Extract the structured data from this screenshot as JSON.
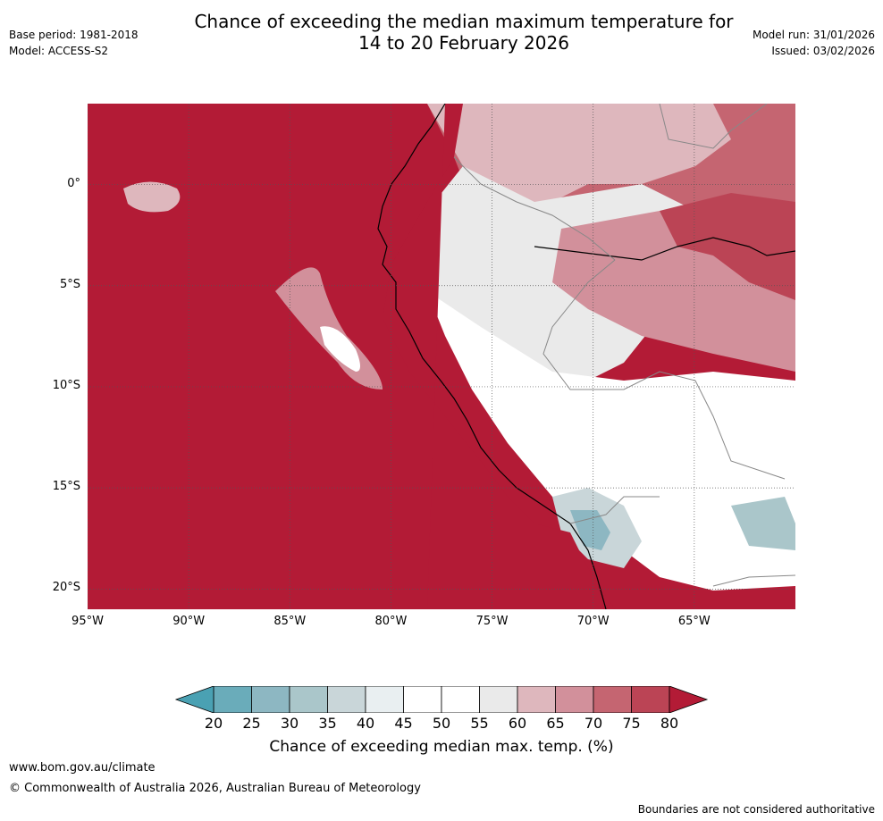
{
  "title": {
    "line1": "Chance of exceeding the median maximum temperature for",
    "line2": "14 to 20 February 2026"
  },
  "meta_left": {
    "base_period": "Base period: 1981-2018",
    "model": "Model: ACCESS-S2"
  },
  "meta_right": {
    "model_run": "Model run: 31/01/2026",
    "issued": "Issued: 03/02/2026"
  },
  "map": {
    "lat_labels": [
      "0°",
      "5°S",
      "10°S",
      "15°S",
      "20°S"
    ],
    "lon_labels": [
      "95°W",
      "90°W",
      "85°W",
      "80°W",
      "75°W",
      "70°W",
      "65°W"
    ],
    "lat_values": [
      0,
      -5,
      -10,
      -15,
      -20
    ],
    "lon_values": [
      -95,
      -90,
      -85,
      -80,
      -75,
      -70,
      -65
    ],
    "lon_range": [
      -95,
      -60
    ],
    "lat_range": [
      -21,
      4
    ]
  },
  "colorbar": {
    "label": "Chance of exceeding median max. temp. (%)",
    "ticks": [
      "20",
      "25",
      "30",
      "35",
      "40",
      "45",
      "50",
      "55",
      "60",
      "65",
      "70",
      "75",
      "80"
    ],
    "colors": [
      "#6aacba",
      "#8db7c2",
      "#aac6ca",
      "#c9d6d9",
      "#e9eff1",
      "#ffffff",
      "#ffffff",
      "#eaeaea",
      "#deb7bd",
      "#d2909b",
      "#c56571",
      "#bb4455"
    ],
    "under_color": "#4aa1b3",
    "over_color": "#b31b36"
  },
  "footer": {
    "url": "www.bom.gov.au/climate",
    "copyright": "© Commonwealth of Australia 2026, Australian Bureau of Meteorology",
    "disclaimer": "Boundaries are not considered authoritative"
  }
}
